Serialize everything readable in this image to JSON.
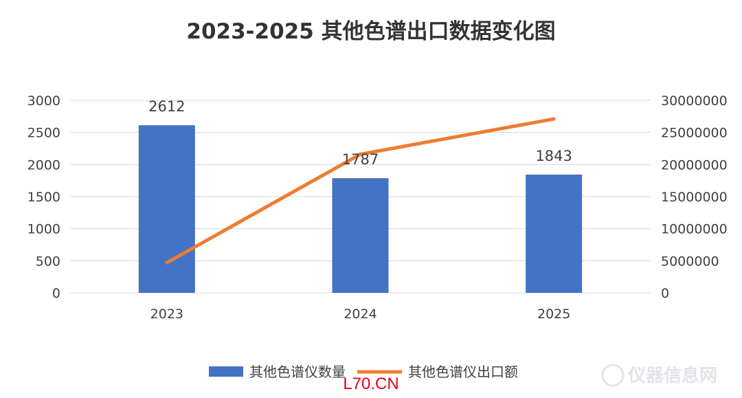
{
  "chart_data": {
    "type": "bar",
    "title": "2023-2025 其他色谱出口数据变化图",
    "categories": [
      "2023",
      "2024",
      "2025"
    ],
    "series": [
      {
        "name": "其他色谱仪数量",
        "kind": "bar",
        "axis": "left",
        "values": [
          2612,
          1787,
          1843
        ],
        "data_labels": [
          "2612",
          "1787",
          "1843"
        ]
      },
      {
        "name": "其他色谱仪出口额",
        "kind": "line",
        "axis": "right",
        "values": [
          4700000,
          21600000,
          27100000
        ]
      }
    ],
    "y_left": {
      "ylim": [
        0,
        3000
      ],
      "ticks": [
        "0",
        "500",
        "1000",
        "1500",
        "2000",
        "2500",
        "3000"
      ]
    },
    "y_right": {
      "ylim": [
        0,
        30000000
      ],
      "ticks": [
        "0",
        "5000000",
        "10000000",
        "15000000",
        "20000000",
        "25000000",
        "30000000"
      ]
    },
    "grid": true,
    "legend_position": "bottom",
    "colors": {
      "bar": "#4472c4",
      "line": "#ed7d31",
      "grid": "#d9d9d9"
    }
  },
  "source_label": "L70.CN",
  "watermark": "仪器信息网"
}
